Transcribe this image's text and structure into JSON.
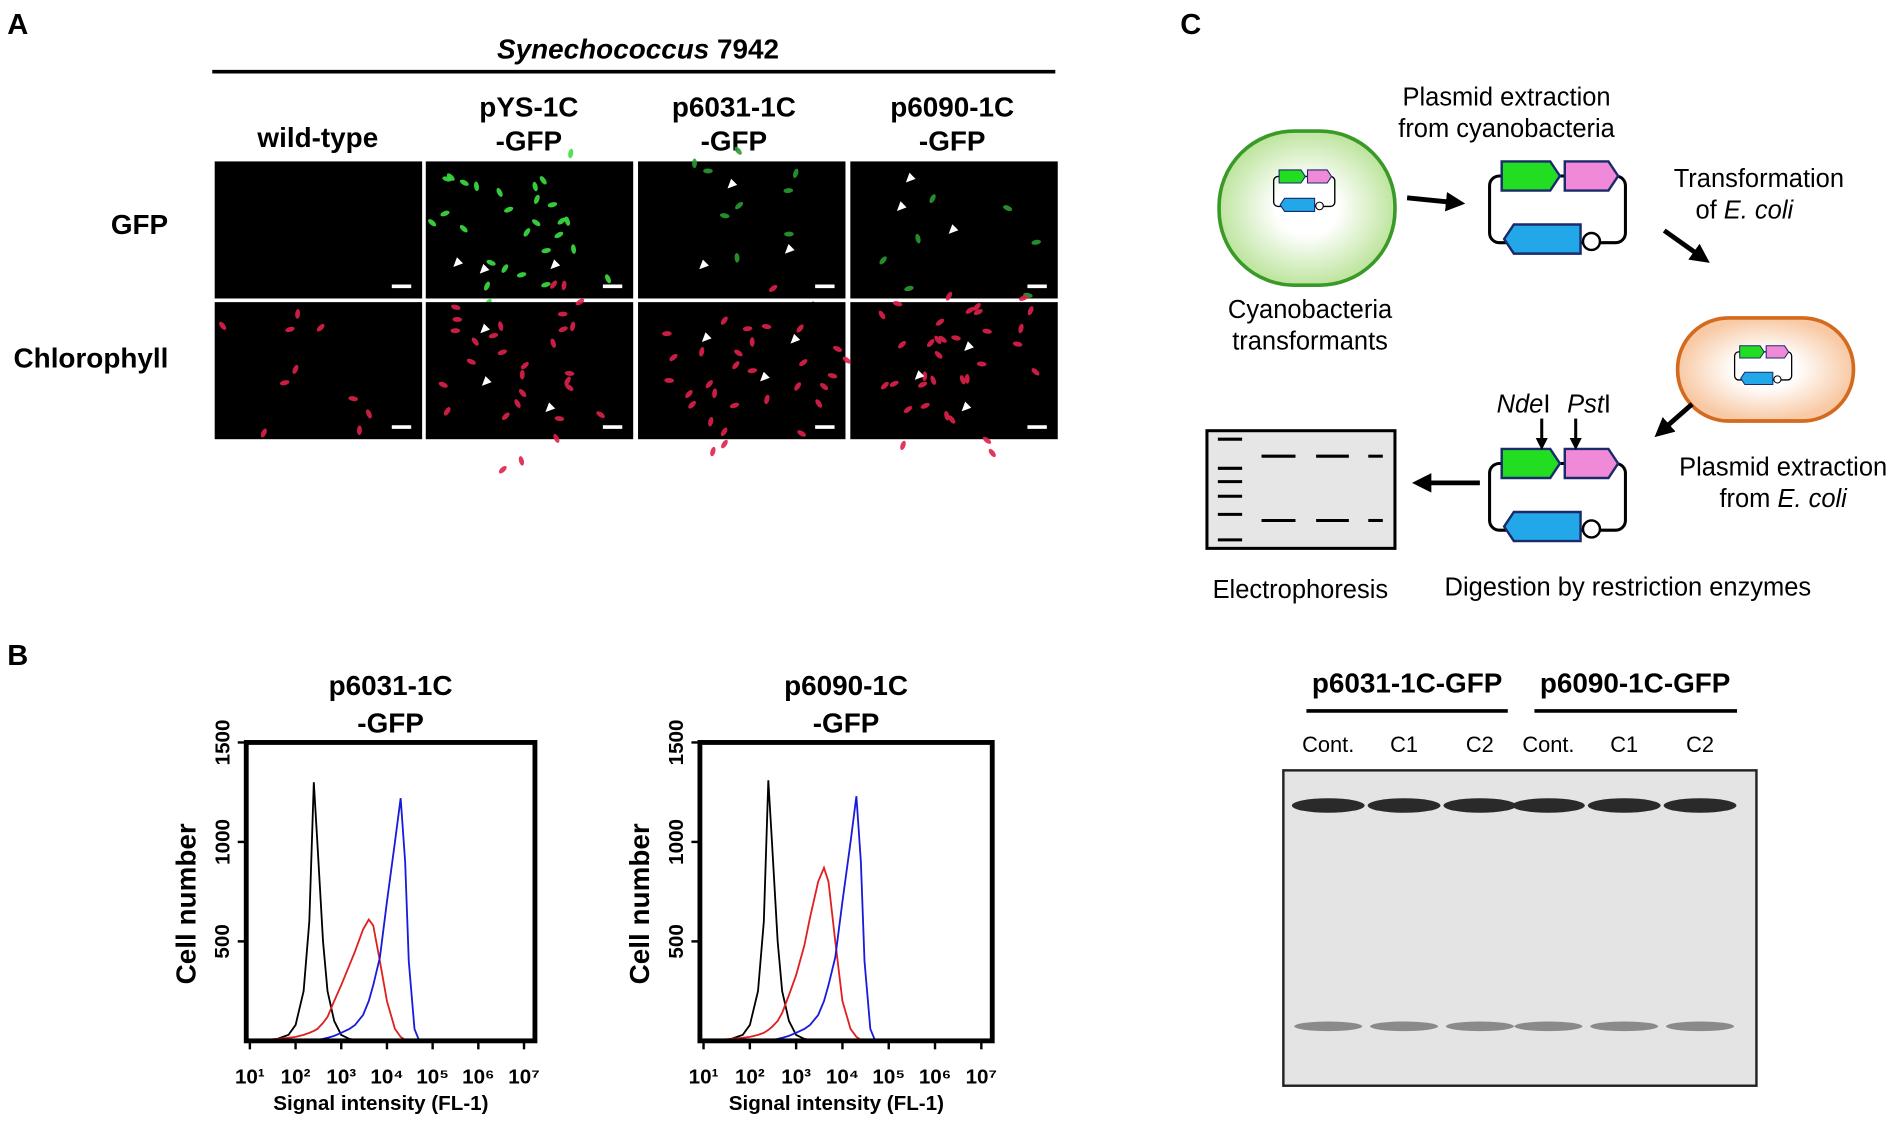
{
  "panel_labels": [
    "A",
    "B",
    "C"
  ],
  "microscopy": {
    "header": [
      "Synechococcus",
      " 7942"
    ],
    "columns": [
      [
        "wild-type"
      ],
      [
        "pYS-1C",
        "-GFP"
      ],
      [
        "p6031-1C",
        "-GFP"
      ],
      [
        "p6090-1C",
        "-GFP"
      ]
    ],
    "rows": [
      "GFP",
      "Chlorophyll"
    ]
  },
  "diagram": {
    "step1": [
      "Plasmid extraction",
      "from cyanobacteria"
    ],
    "cells": [
      "Cyanobacteria",
      "transformants"
    ],
    "step2": [
      "Transformation",
      "of ",
      "E. coli"
    ],
    "step3": [
      "Plasmid extraction",
      "from ",
      "E. coli"
    ],
    "enzyme1": [
      "Nde",
      "I"
    ],
    "enzyme2": [
      "Pst",
      "I"
    ],
    "step4": "Digestion by restriction enzymes",
    "step5": "Electrophoresis"
  },
  "gel": {
    "groups": [
      "p6031-1C-GFP",
      "p6090-1C-GFP"
    ],
    "lanes": [
      "Cont.",
      "C1",
      "C2",
      "Cont.",
      "C1",
      "C2"
    ]
  },
  "chart_data": [
    {
      "type": "line",
      "title": [
        "p6031-1C",
        "-GFP"
      ],
      "xlabel": "Signal intensity (FL-1)",
      "ylabel": "Cell number",
      "xscale": "log",
      "x": [
        20,
        40,
        70,
        100,
        150,
        200,
        250,
        300,
        400,
        500,
        700,
        1000,
        1500,
        2000,
        3000,
        4000,
        5000,
        7000,
        10000,
        15000,
        20000,
        25000,
        30000,
        40000,
        50000
      ],
      "series": [
        {
          "color": "#000000",
          "values": [
            0,
            10,
            30,
            80,
            250,
            600,
            1300,
            1000,
            500,
            250,
            100,
            30,
            10,
            5,
            0,
            0,
            0,
            0,
            0,
            0,
            0,
            0,
            0,
            0,
            0
          ]
        },
        {
          "color": "#e02020",
          "values": [
            5,
            10,
            15,
            20,
            30,
            40,
            50,
            60,
            90,
            120,
            200,
            280,
            380,
            450,
            560,
            610,
            580,
            400,
            200,
            60,
            20,
            5,
            0,
            0,
            0
          ]
        },
        {
          "color": "#1a1adc",
          "values": [
            0,
            0,
            0,
            0,
            0,
            0,
            0,
            5,
            10,
            15,
            25,
            40,
            60,
            80,
            130,
            200,
            280,
            420,
            700,
            1000,
            1220,
            900,
            400,
            60,
            5
          ]
        }
      ],
      "xlim": [
        10,
        10000000
      ],
      "ylim": [
        0,
        1500
      ],
      "yticks": [
        500,
        1000,
        1500
      ],
      "xticks": [
        {
          "value": 10,
          "label": "10¹"
        },
        {
          "value": 100,
          "label": "10²"
        },
        {
          "value": 1000,
          "label": "10³"
        },
        {
          "value": 10000,
          "label": "10⁴"
        },
        {
          "value": 100000,
          "label": "10⁵"
        },
        {
          "value": 1000000,
          "label": "10⁶"
        },
        {
          "value": 10000000,
          "label": "10⁷"
        }
      ]
    },
    {
      "type": "line",
      "title": [
        "p6090-1C",
        "-GFP"
      ],
      "xlabel": "Signal intensity (FL-1)",
      "ylabel": "Cell number",
      "xscale": "log",
      "x": [
        20,
        40,
        70,
        100,
        150,
        200,
        250,
        300,
        400,
        500,
        700,
        1000,
        1500,
        2000,
        3000,
        4000,
        5000,
        7000,
        10000,
        15000,
        20000,
        25000,
        30000,
        40000,
        50000
      ],
      "series": [
        {
          "color": "#000000",
          "values": [
            0,
            10,
            30,
            80,
            250,
            600,
            1310,
            1000,
            500,
            250,
            100,
            30,
            10,
            5,
            0,
            0,
            0,
            0,
            0,
            0,
            0,
            0,
            0,
            0,
            0
          ]
        },
        {
          "color": "#e02020",
          "values": [
            5,
            10,
            15,
            20,
            30,
            40,
            55,
            70,
            100,
            140,
            230,
            330,
            480,
            620,
            800,
            870,
            800,
            500,
            200,
            60,
            20,
            5,
            0,
            0,
            0
          ]
        },
        {
          "color": "#1a1adc",
          "values": [
            0,
            0,
            0,
            0,
            0,
            0,
            0,
            5,
            10,
            15,
            25,
            40,
            60,
            80,
            130,
            200,
            280,
            420,
            700,
            1000,
            1230,
            900,
            400,
            60,
            5
          ]
        }
      ],
      "xlim": [
        10,
        10000000
      ],
      "ylim": [
        0,
        1500
      ],
      "yticks": [
        500,
        1000,
        1500
      ],
      "xticks": [
        {
          "value": 10,
          "label": "10¹"
        },
        {
          "value": 100,
          "label": "10²"
        },
        {
          "value": 1000,
          "label": "10³"
        },
        {
          "value": 10000,
          "label": "10⁴"
        },
        {
          "value": 100000,
          "label": "10⁵"
        },
        {
          "value": 1000000,
          "label": "10⁶"
        },
        {
          "value": 10000000,
          "label": "10⁷"
        }
      ]
    }
  ]
}
